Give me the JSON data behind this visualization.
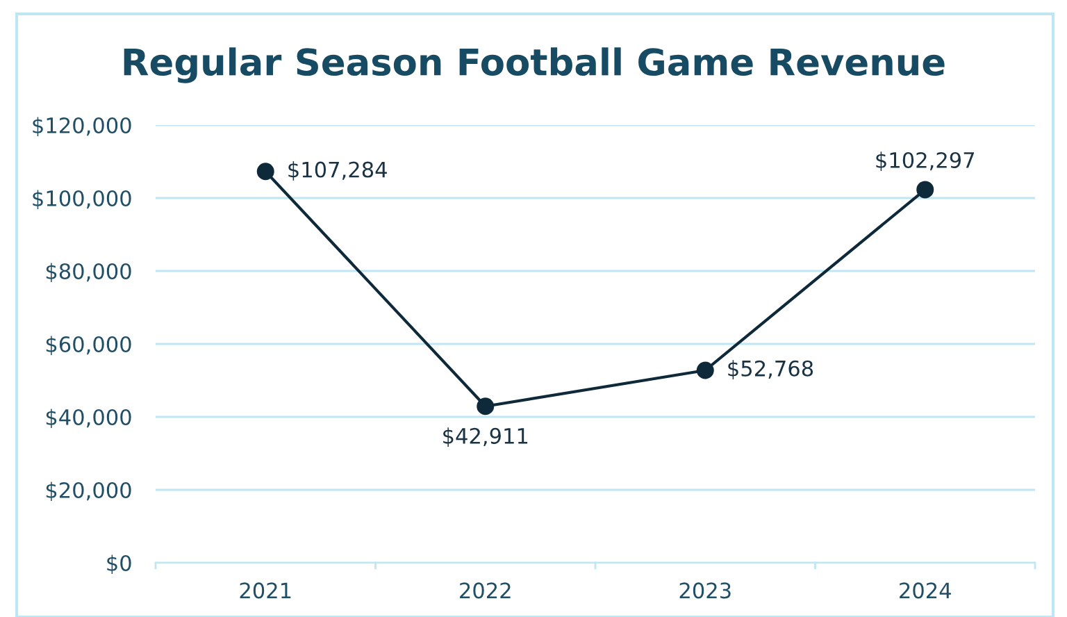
{
  "chart_data": {
    "type": "line",
    "title": "Regular Season Football Game Revenue",
    "categories": [
      "2021",
      "2022",
      "2023",
      "2024"
    ],
    "series": [
      {
        "color": "#0e2a3a",
        "values": [
          107284,
          42911,
          52768,
          102297
        ],
        "value_labels": [
          "$107,284",
          "$42,911",
          "$52,768",
          "$102,297"
        ]
      }
    ],
    "ylim": [
      0,
      120000
    ],
    "yticks": [
      {
        "value": 0,
        "label": "$0"
      },
      {
        "value": 20000,
        "label": "$20,000"
      },
      {
        "value": 40000,
        "label": "$40,000"
      },
      {
        "value": 60000,
        "label": "$60,000"
      },
      {
        "value": 80000,
        "label": "$80,000"
      },
      {
        "value": 100000,
        "label": "$100,000"
      },
      {
        "value": 120000,
        "label": "$120,000"
      }
    ],
    "grid": "y",
    "marker": "circle",
    "line_style": "solid"
  }
}
